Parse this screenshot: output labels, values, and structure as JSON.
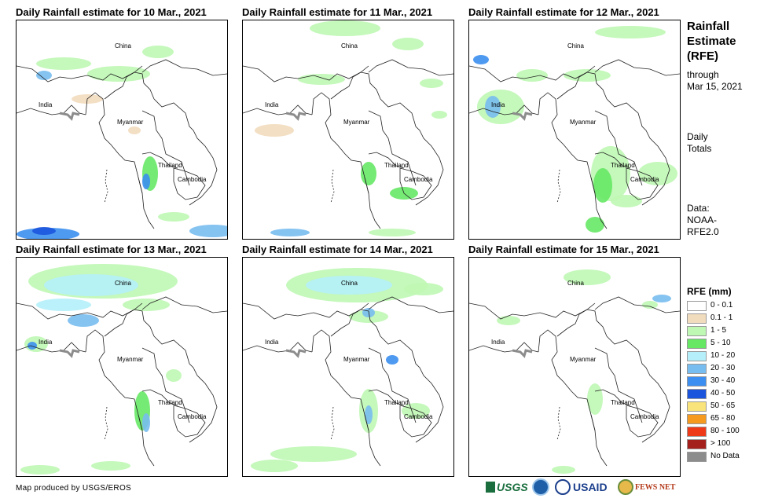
{
  "panels": [
    {
      "title": "Daily Rainfall estimate for 10 Mar., 2021",
      "labels": {
        "china": "China",
        "india": "India",
        "myanmar": "Myanmar",
        "thailand": "Thailand",
        "cambodia": "Cambodia"
      }
    },
    {
      "title": "Daily Rainfall estimate for 11 Mar., 2021",
      "labels": {
        "china": "China",
        "india": "India",
        "myanmar": "Myanmar",
        "thailand": "Thailand",
        "cambodia": "Cambodia"
      }
    },
    {
      "title": "Daily Rainfall estimate for 12 Mar., 2021",
      "labels": {
        "china": "China",
        "india": "India",
        "myanmar": "Myanmar",
        "thailand": "Thailand",
        "cambodia": "Cambodia"
      }
    },
    {
      "title": "Daily Rainfall estimate for 13 Mar., 2021",
      "labels": {
        "china": "China",
        "india": "India",
        "myanmar": "Myanmar",
        "thailand": "Thailand",
        "cambodia": "Cambodia"
      }
    },
    {
      "title": "Daily Rainfall estimate for 14 Mar., 2021",
      "labels": {
        "china": "China",
        "india": "India",
        "myanmar": "Myanmar",
        "thailand": "Thailand",
        "cambodia": "Cambodia"
      }
    },
    {
      "title": "Daily Rainfall estimate for 15 Mar., 2021",
      "labels": {
        "china": "China",
        "india": "India",
        "myanmar": "Myanmar",
        "thailand": "Thailand",
        "cambodia": "Cambodia"
      }
    }
  ],
  "sidebar": {
    "title_line1": "Rainfall",
    "title_line2": "Estimate",
    "title_line3": "(RFE)",
    "through": "through",
    "date": "Mar 15, 2021",
    "daily": "Daily",
    "totals": "Totals",
    "data_label": "Data:",
    "data_src1": "NOAA-",
    "data_src2": "RFE2.0"
  },
  "legend": {
    "title": "RFE (mm)",
    "items": [
      {
        "label": "0 - 0.1",
        "color": "#ffffff"
      },
      {
        "label": "0.1 - 1",
        "color": "#f2dcbe"
      },
      {
        "label": "1 - 5",
        "color": "#bff7b4"
      },
      {
        "label": "5 - 10",
        "color": "#66e865"
      },
      {
        "label": "10 - 20",
        "color": "#b4effa"
      },
      {
        "label": "20 - 30",
        "color": "#78bdf0"
      },
      {
        "label": "30 - 40",
        "color": "#3c8ff0"
      },
      {
        "label": "40 - 50",
        "color": "#1b55dd"
      },
      {
        "label": "50 - 65",
        "color": "#f8e47a"
      },
      {
        "label": "65 - 80",
        "color": "#f59a1e"
      },
      {
        "label": "80 - 100",
        "color": "#ef3a1a"
      },
      {
        "label": "> 100",
        "color": "#a3201d"
      },
      {
        "label": "No Data",
        "color": "#8c8c8c"
      }
    ]
  },
  "footer": {
    "credit": "Map produced by USGS/EROS",
    "usgs": "USGS",
    "usaid": "USAID",
    "fewsnet": "FEWS NET"
  }
}
